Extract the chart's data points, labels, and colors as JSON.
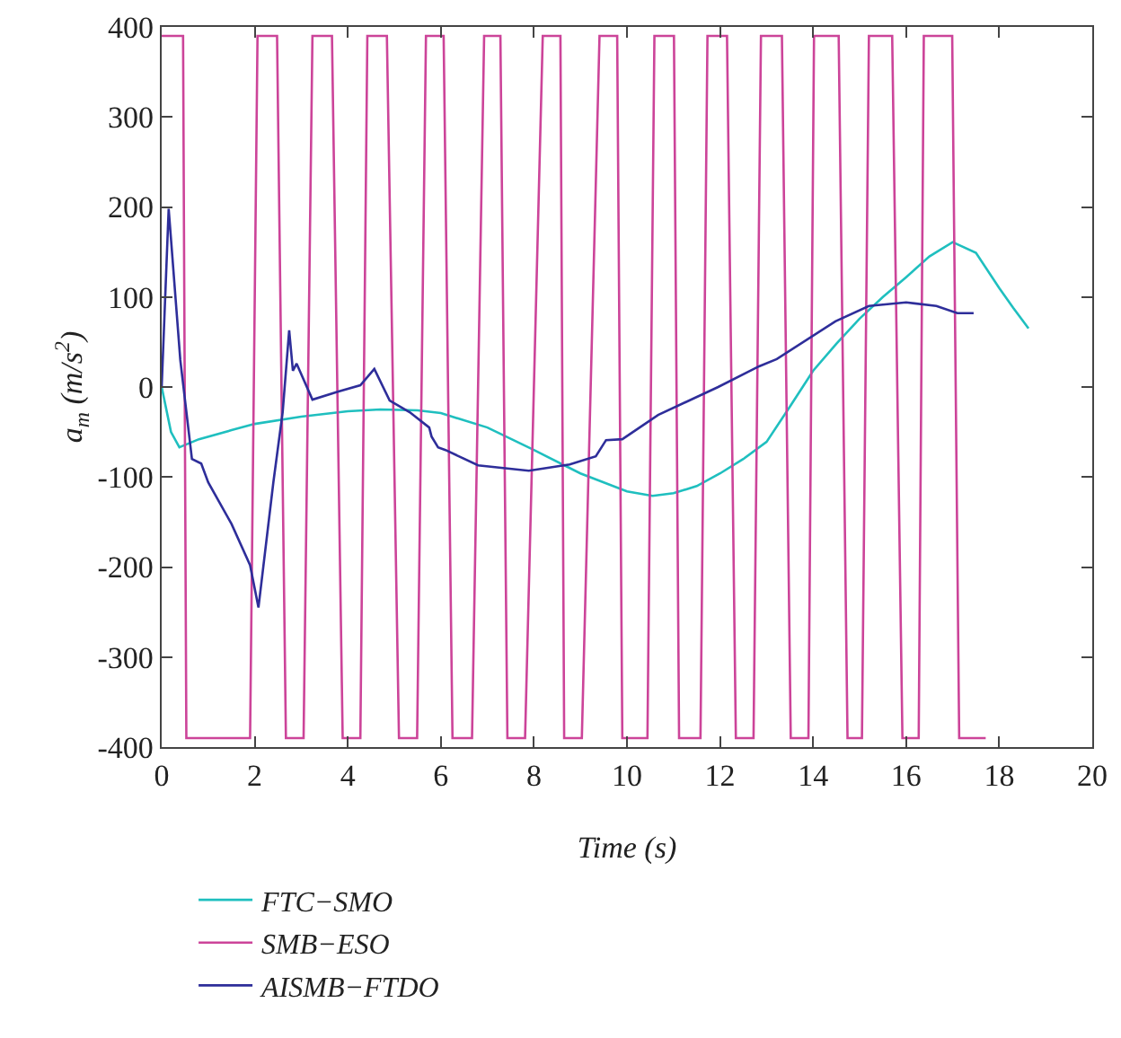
{
  "chart_data": {
    "type": "line",
    "xlabel": "Time (s)",
    "ylabel": "a$_{m}$ (m/s$^{2}$)",
    "xlim": [
      0,
      20
    ],
    "xticks": [
      0,
      2,
      4,
      6,
      8,
      10,
      12,
      14,
      16,
      18,
      20
    ],
    "ylim": [
      -400,
      400
    ],
    "yticks": [
      -400,
      -300,
      -200,
      -100,
      0,
      100,
      200,
      300,
      400
    ],
    "grid": false,
    "legend": "bottom",
    "line_style": "solid",
    "marker": "none",
    "series": [
      {
        "name": "FTC−SMO",
        "color": "#1fbfbf",
        "x": [
          0,
          0.2,
          0.38,
          0.8,
          1.5,
          2,
          3,
          4,
          4.7,
          5.5,
          6,
          7,
          8,
          9,
          10,
          10.55,
          11,
          11.5,
          12,
          12.5,
          13,
          13.5,
          14,
          14.5,
          15,
          15.5,
          16,
          16.5,
          17,
          17.5,
          18,
          18.3,
          18.63
        ],
        "values": [
          0,
          -50,
          -67,
          -58,
          -48,
          -41,
          -33,
          -27,
          -25,
          -26,
          -29,
          -45,
          -70,
          -96,
          -116,
          -121,
          -118,
          -110,
          -96,
          -80,
          -61,
          -22,
          18,
          48,
          76,
          100,
          122,
          145,
          161,
          149,
          110,
          88,
          65
        ]
      },
      {
        "name": "SMB−ESO",
        "color": "#cc4499",
        "x": [
          0,
          0.46,
          0.53,
          1.9,
          2.06,
          2.48,
          2.67,
          3.05,
          3.24,
          3.66,
          3.89,
          4.27,
          4.42,
          4.84,
          5.1,
          5.49,
          5.68,
          6.06,
          6.25,
          6.67,
          6.93,
          7.28,
          7.43,
          7.81,
          8.19,
          8.57,
          8.65,
          9.03,
          9.41,
          9.79,
          9.9,
          10.44,
          10.59,
          11.01,
          11.12,
          11.58,
          11.73,
          12.15,
          12.34,
          12.72,
          12.88,
          13.33,
          13.52,
          13.9,
          14.02,
          14.55,
          14.74,
          15.05,
          15.2,
          15.7,
          15.92,
          16.27,
          16.38,
          16.99,
          17.14,
          17.71
        ],
        "values": [
          390,
          390,
          -390,
          -390,
          390,
          390,
          -390,
          -390,
          390,
          390,
          -390,
          -390,
          390,
          390,
          -390,
          -390,
          390,
          390,
          -390,
          -390,
          390,
          390,
          -390,
          -390,
          390,
          390,
          -390,
          -390,
          390,
          390,
          -390,
          -390,
          390,
          390,
          -390,
          -390,
          390,
          390,
          -390,
          -390,
          390,
          390,
          -390,
          -390,
          390,
          390,
          -390,
          -390,
          390,
          390,
          -390,
          -390,
          390,
          390,
          -390,
          -390
        ]
      },
      {
        "name": "AISMB−FTDO",
        "color": "#2e2e9a",
        "x": [
          0,
          0.15,
          0.4,
          0.65,
          0.85,
          1,
          1.5,
          1.9,
          2.08,
          2.4,
          2.6,
          2.74,
          2.82,
          2.9,
          3.24,
          3.8,
          4.27,
          4.57,
          4.9,
          5.33,
          5.75,
          5.8,
          5.94,
          6.1,
          6.8,
          7.89,
          8.77,
          9.33,
          9.55,
          9.9,
          10.67,
          11.96,
          12.84,
          13.22,
          14.48,
          15.2,
          16,
          16.65,
          17.1,
          17.45
        ],
        "values": [
          0,
          198,
          30,
          -80,
          -85,
          -106,
          -152,
          -198,
          -245,
          -106,
          -28,
          63,
          18,
          26,
          -14,
          -5,
          2,
          20,
          -15,
          -28,
          -45,
          -55,
          -67,
          -70,
          -87,
          -93,
          -86,
          -77,
          -59,
          -58,
          -31,
          0,
          23,
          31,
          73,
          90,
          94,
          90,
          82,
          82
        ]
      }
    ]
  }
}
